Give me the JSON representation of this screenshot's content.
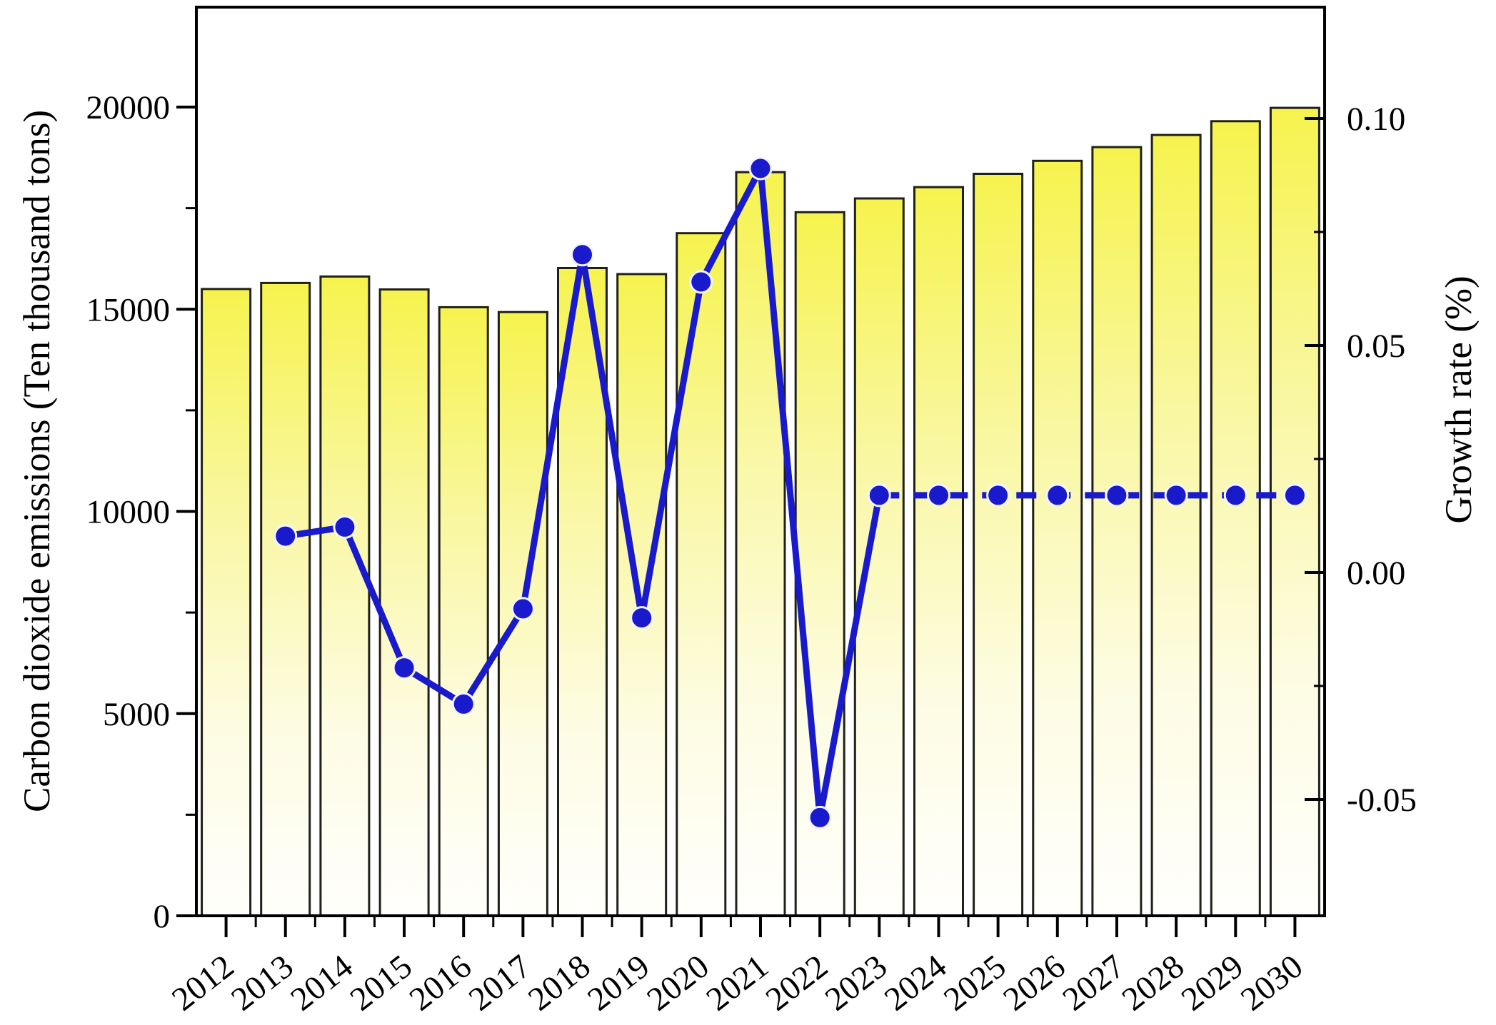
{
  "chart_data": {
    "type": "bar+line",
    "title": "",
    "categories": [
      "2012",
      "2013",
      "2014",
      "2015",
      "2016",
      "2017",
      "2018",
      "2019",
      "2020",
      "2021",
      "2022",
      "2023",
      "2024",
      "2025",
      "2026",
      "2027",
      "2028",
      "2029",
      "2030"
    ],
    "series": [
      {
        "name": "Carbon dioxide emissions",
        "type": "bar",
        "axis": "left",
        "values": [
          15500,
          15650,
          15810,
          15490,
          15050,
          14930,
          16020,
          15870,
          16880,
          18390,
          17400,
          17740,
          18020,
          18350,
          18670,
          19010,
          19310,
          19650,
          19980
        ]
      },
      {
        "name": "Growth rate",
        "type": "line",
        "axis": "right",
        "values": [
          null,
          0.008,
          0.01,
          -0.021,
          -0.029,
          -0.008,
          0.07,
          -0.01,
          0.064,
          0.089,
          -0.054,
          0.017,
          0.017,
          0.017,
          0.017,
          0.017,
          0.017,
          0.017,
          0.017
        ],
        "line_style": {
          "solid_from": "2013",
          "solid_to": "2023",
          "dashed_from": "2023",
          "dashed_to": "2030"
        }
      }
    ],
    "left_axis": {
      "label": "Carbon dioxide emissions (Ten thousand tons)",
      "ticks": [
        "0",
        "5000",
        "10000",
        "15000",
        "20000"
      ],
      "tick_values": [
        0,
        5000,
        10000,
        15000,
        20000
      ],
      "minor_tick_values": [
        2500,
        7500,
        12500,
        17500,
        22500
      ],
      "range": [
        0,
        22470
      ]
    },
    "right_axis": {
      "label": "Growth rate (%)",
      "ticks": [
        "0.10",
        "0.05",
        "0.00",
        "-0.05"
      ],
      "tick_values": [
        0.1,
        0.05,
        0.0,
        -0.05
      ],
      "minor_tick_values": [
        0.075,
        0.025,
        -0.025
      ],
      "range": [
        -0.0757,
        0.1245
      ]
    },
    "x_axis": {
      "tick_label_rotation_deg": -38,
      "minor_ticks_between_years": true
    },
    "grid": false,
    "legend": null,
    "colors": {
      "bar_fill_top": "#f6f34e",
      "bar_fill_mid": "#fbf9b0",
      "bar_fill_bottom": "#fffffd",
      "bar_border": "#20201a",
      "line": "#1a1acd",
      "marker": "#1a1acd",
      "marker_edge": "#f4f4ff",
      "axis": "#000000",
      "background": "#ffffff"
    }
  }
}
